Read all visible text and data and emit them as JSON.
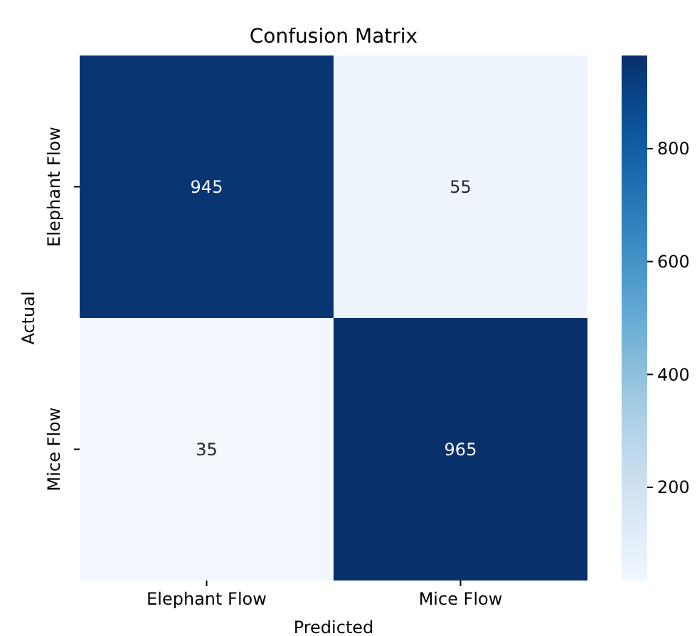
{
  "chart_data": {
    "type": "heatmap",
    "title": "Confusion Matrix",
    "xlabel": "Predicted",
    "ylabel": "Actual",
    "categories": [
      "Elephant Flow",
      "Mice Flow"
    ],
    "y_categories": [
      "Elephant Flow",
      "Mice Flow"
    ],
    "cells": [
      [
        945,
        55
      ],
      [
        35,
        965
      ]
    ],
    "data_labels": true,
    "clim": [
      35,
      965
    ],
    "cticks": [
      200,
      400,
      600,
      800
    ]
  }
}
